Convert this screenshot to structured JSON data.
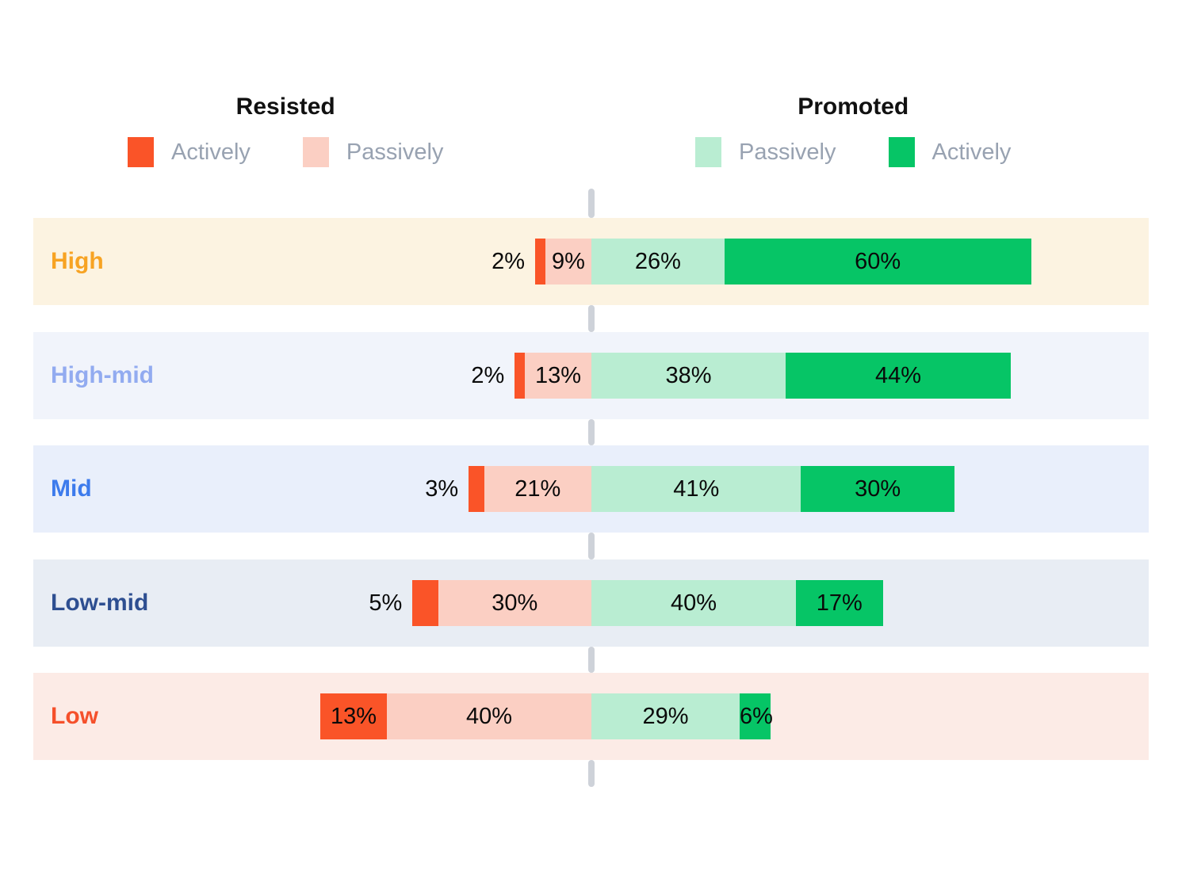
{
  "legend": {
    "resisted": {
      "title": "Resisted",
      "items": [
        {
          "label": "Actively",
          "color": "#FA5428"
        },
        {
          "label": "Passively",
          "color": "#FBCFC3"
        }
      ]
    },
    "promoted": {
      "title": "Promoted",
      "items": [
        {
          "label": "Passively",
          "color": "#B9EDD2"
        },
        {
          "label": "Actively",
          "color": "#06C566"
        }
      ]
    }
  },
  "chart_data": {
    "type": "bar",
    "variant": "diverging-stacked-horizontal",
    "value_suffix": "%",
    "categories": [
      "High",
      "High-mid",
      "Mid",
      "Low-mid",
      "Low"
    ],
    "series": [
      {
        "name": "Actively resisted",
        "side": "left",
        "color": "#FA5428",
        "values": [
          2,
          2,
          3,
          5,
          13
        ]
      },
      {
        "name": "Passively resisted",
        "side": "left",
        "color": "#FBCFC3",
        "values": [
          9,
          13,
          21,
          30,
          40
        ]
      },
      {
        "name": "Passively promoted",
        "side": "right",
        "color": "#B9EDD2",
        "values": [
          26,
          38,
          41,
          40,
          29
        ]
      },
      {
        "name": "Actively promoted",
        "side": "right",
        "color": "#06C566",
        "values": [
          60,
          44,
          30,
          17,
          6
        ]
      }
    ],
    "row_styles": [
      {
        "label_color": "#F7A323",
        "band_color": "#FCF3E1"
      },
      {
        "label_color": "#92ABF0",
        "band_color": "#F1F4FB"
      },
      {
        "label_color": "#3D7BEC",
        "band_color": "#E9EFFB"
      },
      {
        "label_color": "#2E4F91",
        "band_color": "#E8EDF4"
      },
      {
        "label_color": "#F5502B",
        "band_color": "#FCEBE6"
      }
    ],
    "axis": {
      "center_line_color": "#CED2D9",
      "grid": false,
      "legend_position": "top"
    }
  }
}
